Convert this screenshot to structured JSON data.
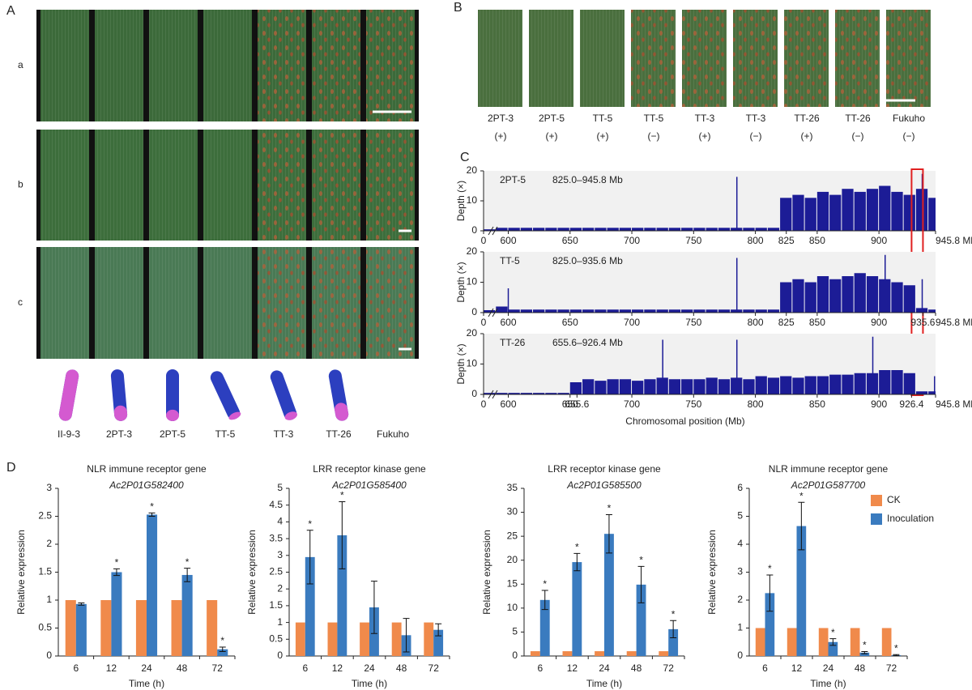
{
  "panel_a": {
    "label": "A",
    "rows": [
      "a",
      "b",
      "c"
    ],
    "genotypes": [
      "II-9-3",
      "2PT-3",
      "2PT-5",
      "TT-5",
      "TT-3",
      "TT-26",
      "Fukuho"
    ]
  },
  "panel_b": {
    "label": "B",
    "lines": [
      {
        "name": "2PT-3",
        "phenotype": "(+)"
      },
      {
        "name": "2PT-5",
        "phenotype": "(+)"
      },
      {
        "name": "TT-5",
        "phenotype": "(+)"
      },
      {
        "name": "TT-5",
        "phenotype": "(−)"
      },
      {
        "name": "TT-3",
        "phenotype": "(+)"
      },
      {
        "name": "TT-3",
        "phenotype": "(−)"
      },
      {
        "name": "TT-26",
        "phenotype": "(+)"
      },
      {
        "name": "TT-26",
        "phenotype": "(−)"
      },
      {
        "name": "Fukuho",
        "phenotype": "(−)"
      }
    ]
  },
  "panel_c_label": "C",
  "panel_d_label": "D",
  "chart_data": [
    {
      "type": "depth",
      "title": "2PT-5",
      "subtitle": "825.0–945.8 Mb",
      "ylabel": "Depth (×)",
      "color": "#1c1c96",
      "x": [
        585,
        595,
        605,
        615,
        625,
        635,
        645,
        655,
        665,
        675,
        685,
        695,
        705,
        715,
        725,
        735,
        745,
        755,
        765,
        775,
        785,
        795,
        805,
        815,
        825,
        835,
        845,
        855,
        865,
        875,
        885,
        895,
        905,
        915,
        925,
        935,
        945
      ],
      "values": [
        0.5,
        1,
        1,
        1,
        1,
        1,
        1,
        1,
        1,
        1,
        1,
        1,
        1,
        1,
        1,
        1,
        1,
        1,
        1,
        1,
        1,
        1,
        1,
        1,
        11,
        12,
        11,
        13,
        12,
        14,
        13,
        14,
        15,
        13,
        12,
        14,
        11
      ],
      "peaks": {
        "x": [
          785,
          935
        ],
        "values": [
          18,
          19
        ]
      },
      "highlight": [
        926.4,
        935.6
      ],
      "highlight_color": "#e02020",
      "xlim": [
        580,
        945.8
      ],
      "ylim": [
        0,
        20
      ],
      "yticks": [
        0,
        10,
        20
      ],
      "xticks": [
        0,
        600,
        650,
        700,
        750,
        800,
        825,
        850,
        900,
        {
          "value": 945.8,
          "label": "945.8 Mb"
        }
      ]
    },
    {
      "type": "depth",
      "title": "TT-5",
      "subtitle": "825.0–935.6 Mb",
      "ylabel": "Depth (×)",
      "color": "#1c1c96",
      "x": [
        585,
        595,
        605,
        615,
        625,
        635,
        645,
        655,
        665,
        675,
        685,
        695,
        705,
        715,
        725,
        735,
        745,
        755,
        765,
        775,
        785,
        795,
        805,
        815,
        825,
        835,
        845,
        855,
        865,
        875,
        885,
        895,
        905,
        915,
        925,
        935,
        945
      ],
      "values": [
        0.8,
        2,
        1,
        1,
        1,
        1,
        1,
        1,
        1,
        1,
        1,
        1,
        1,
        1,
        1,
        1,
        1,
        1,
        1,
        1,
        1,
        1,
        1,
        1,
        10,
        11,
        10,
        12,
        11,
        12,
        13,
        12,
        11,
        10,
        9,
        1.5,
        1
      ],
      "peaks": {
        "x": [
          600,
          785,
          905,
          935
        ],
        "values": [
          8,
          18,
          19,
          11
        ]
      },
      "xlim": [
        580,
        945.8
      ],
      "ylim": [
        0,
        20
      ],
      "yticks": [
        0,
        10,
        20
      ],
      "xticks": [
        0,
        600,
        650,
        700,
        750,
        800,
        825,
        850,
        900,
        935.6,
        {
          "value": 945.8,
          "label": "945.8 Mb"
        }
      ]
    },
    {
      "type": "depth",
      "title": "TT-26",
      "subtitle": "655.6–926.4 Mb",
      "ylabel": "Depth (×)",
      "xlabel": "Chromosomal position (Mb)",
      "color": "#1c1c96",
      "x": [
        585,
        595,
        605,
        615,
        625,
        635,
        645,
        655,
        665,
        675,
        685,
        695,
        705,
        715,
        725,
        735,
        745,
        755,
        765,
        775,
        785,
        795,
        805,
        815,
        825,
        835,
        845,
        855,
        865,
        875,
        885,
        895,
        905,
        915,
        925,
        935,
        945
      ],
      "values": [
        0.5,
        0.5,
        0.5,
        0.5,
        0.5,
        0.5,
        0.5,
        4,
        5,
        4.5,
        5,
        5,
        4.5,
        5,
        5.5,
        5,
        5,
        5,
        5.5,
        5,
        5.5,
        5,
        6,
        5.5,
        6,
        5.5,
        6,
        6,
        6.5,
        6.5,
        7,
        7,
        8,
        8,
        7,
        1,
        1
      ],
      "peaks": {
        "x": [
          725,
          785,
          895,
          945
        ],
        "values": [
          18,
          18,
          19,
          6
        ]
      },
      "xlim": [
        580,
        945.8
      ],
      "ylim": [
        0,
        20
      ],
      "yticks": [
        0,
        10,
        20
      ],
      "xticks": [
        0,
        600,
        650,
        655.6,
        700,
        750,
        800,
        850,
        900,
        926.4,
        {
          "value": 945.8,
          "label": "945.8 Mb"
        }
      ]
    },
    {
      "type": "bar",
      "title": "NLR immune receptor gene",
      "subtitle": "Ac2P01G582400",
      "xlabel": "Time (h)",
      "ylabel": "Relative expression",
      "categories": [
        "6",
        "12",
        "24",
        "48",
        "72"
      ],
      "series": [
        {
          "color": "#f08a4b",
          "values": [
            1,
            1,
            1,
            1,
            1
          ]
        },
        {
          "color": "#3a7bbf",
          "values": [
            0.93,
            1.5,
            2.53,
            1.45,
            0.12
          ],
          "errors": [
            0.02,
            0.06,
            0.03,
            0.12,
            0.04
          ],
          "annotations": [
            null,
            "*",
            "*",
            "*",
            "*"
          ]
        }
      ],
      "ylim": [
        0,
        3
      ],
      "yticks": [
        0,
        0.5,
        1,
        1.5,
        2,
        2.5,
        3
      ]
    },
    {
      "type": "bar",
      "title": "LRR receptor kinase gene",
      "subtitle": "Ac2P01G585400",
      "xlabel": "Time (h)",
      "ylabel": "Relative expression",
      "categories": [
        "6",
        "12",
        "24",
        "48",
        "72"
      ],
      "series": [
        {
          "color": "#f08a4b",
          "values": [
            1,
            1,
            1,
            1,
            1
          ]
        },
        {
          "color": "#3a7bbf",
          "values": [
            2.95,
            3.6,
            1.45,
            0.62,
            0.78
          ],
          "errors": [
            0.8,
            1.0,
            0.78,
            0.5,
            0.18
          ],
          "annotations": [
            "*",
            "*",
            null,
            null,
            null
          ]
        }
      ],
      "ylim": [
        0,
        5
      ],
      "yticks": [
        0,
        0.5,
        1,
        1.5,
        2,
        2.5,
        3,
        3.5,
        4,
        4.5,
        5
      ]
    },
    {
      "type": "bar",
      "title": "LRR receptor kinase gene",
      "subtitle": "Ac2P01G585500",
      "xlabel": "Time (h)",
      "ylabel": "Relative expression",
      "categories": [
        "6",
        "12",
        "24",
        "48",
        "72"
      ],
      "series": [
        {
          "color": "#f08a4b",
          "values": [
            1,
            1,
            1,
            1,
            1
          ]
        },
        {
          "color": "#3a7bbf",
          "values": [
            11.7,
            19.6,
            25.5,
            14.9,
            5.6
          ],
          "errors": [
            2,
            1.8,
            4,
            3.8,
            1.8
          ],
          "annotations": [
            "*",
            "*",
            "*",
            "*",
            "*"
          ]
        }
      ],
      "ylim": [
        0,
        35
      ],
      "yticks": [
        0,
        5,
        10,
        15,
        20,
        25,
        30,
        35
      ]
    },
    {
      "type": "bar",
      "title": "NLR immune receptor gene",
      "subtitle": "Ac2P01G587700",
      "xlabel": "Time (h)",
      "ylabel": "Relative expression",
      "legend": "upper right",
      "categories": [
        "6",
        "12",
        "24",
        "48",
        "72"
      ],
      "series": [
        {
          "name": "CK",
          "color": "#f08a4b",
          "values": [
            1,
            1,
            1,
            1,
            1
          ]
        },
        {
          "name": "Inoculation",
          "color": "#3a7bbf",
          "values": [
            2.25,
            4.65,
            0.5,
            0.12,
            0.03
          ],
          "errors": [
            0.65,
            0.85,
            0.12,
            0.04,
            0.02
          ],
          "annotations": [
            "*",
            "*",
            "*",
            "*",
            "*"
          ]
        }
      ],
      "ylim": [
        0,
        6
      ],
      "yticks": [
        0,
        1,
        2,
        3,
        4,
        5,
        6
      ]
    }
  ]
}
